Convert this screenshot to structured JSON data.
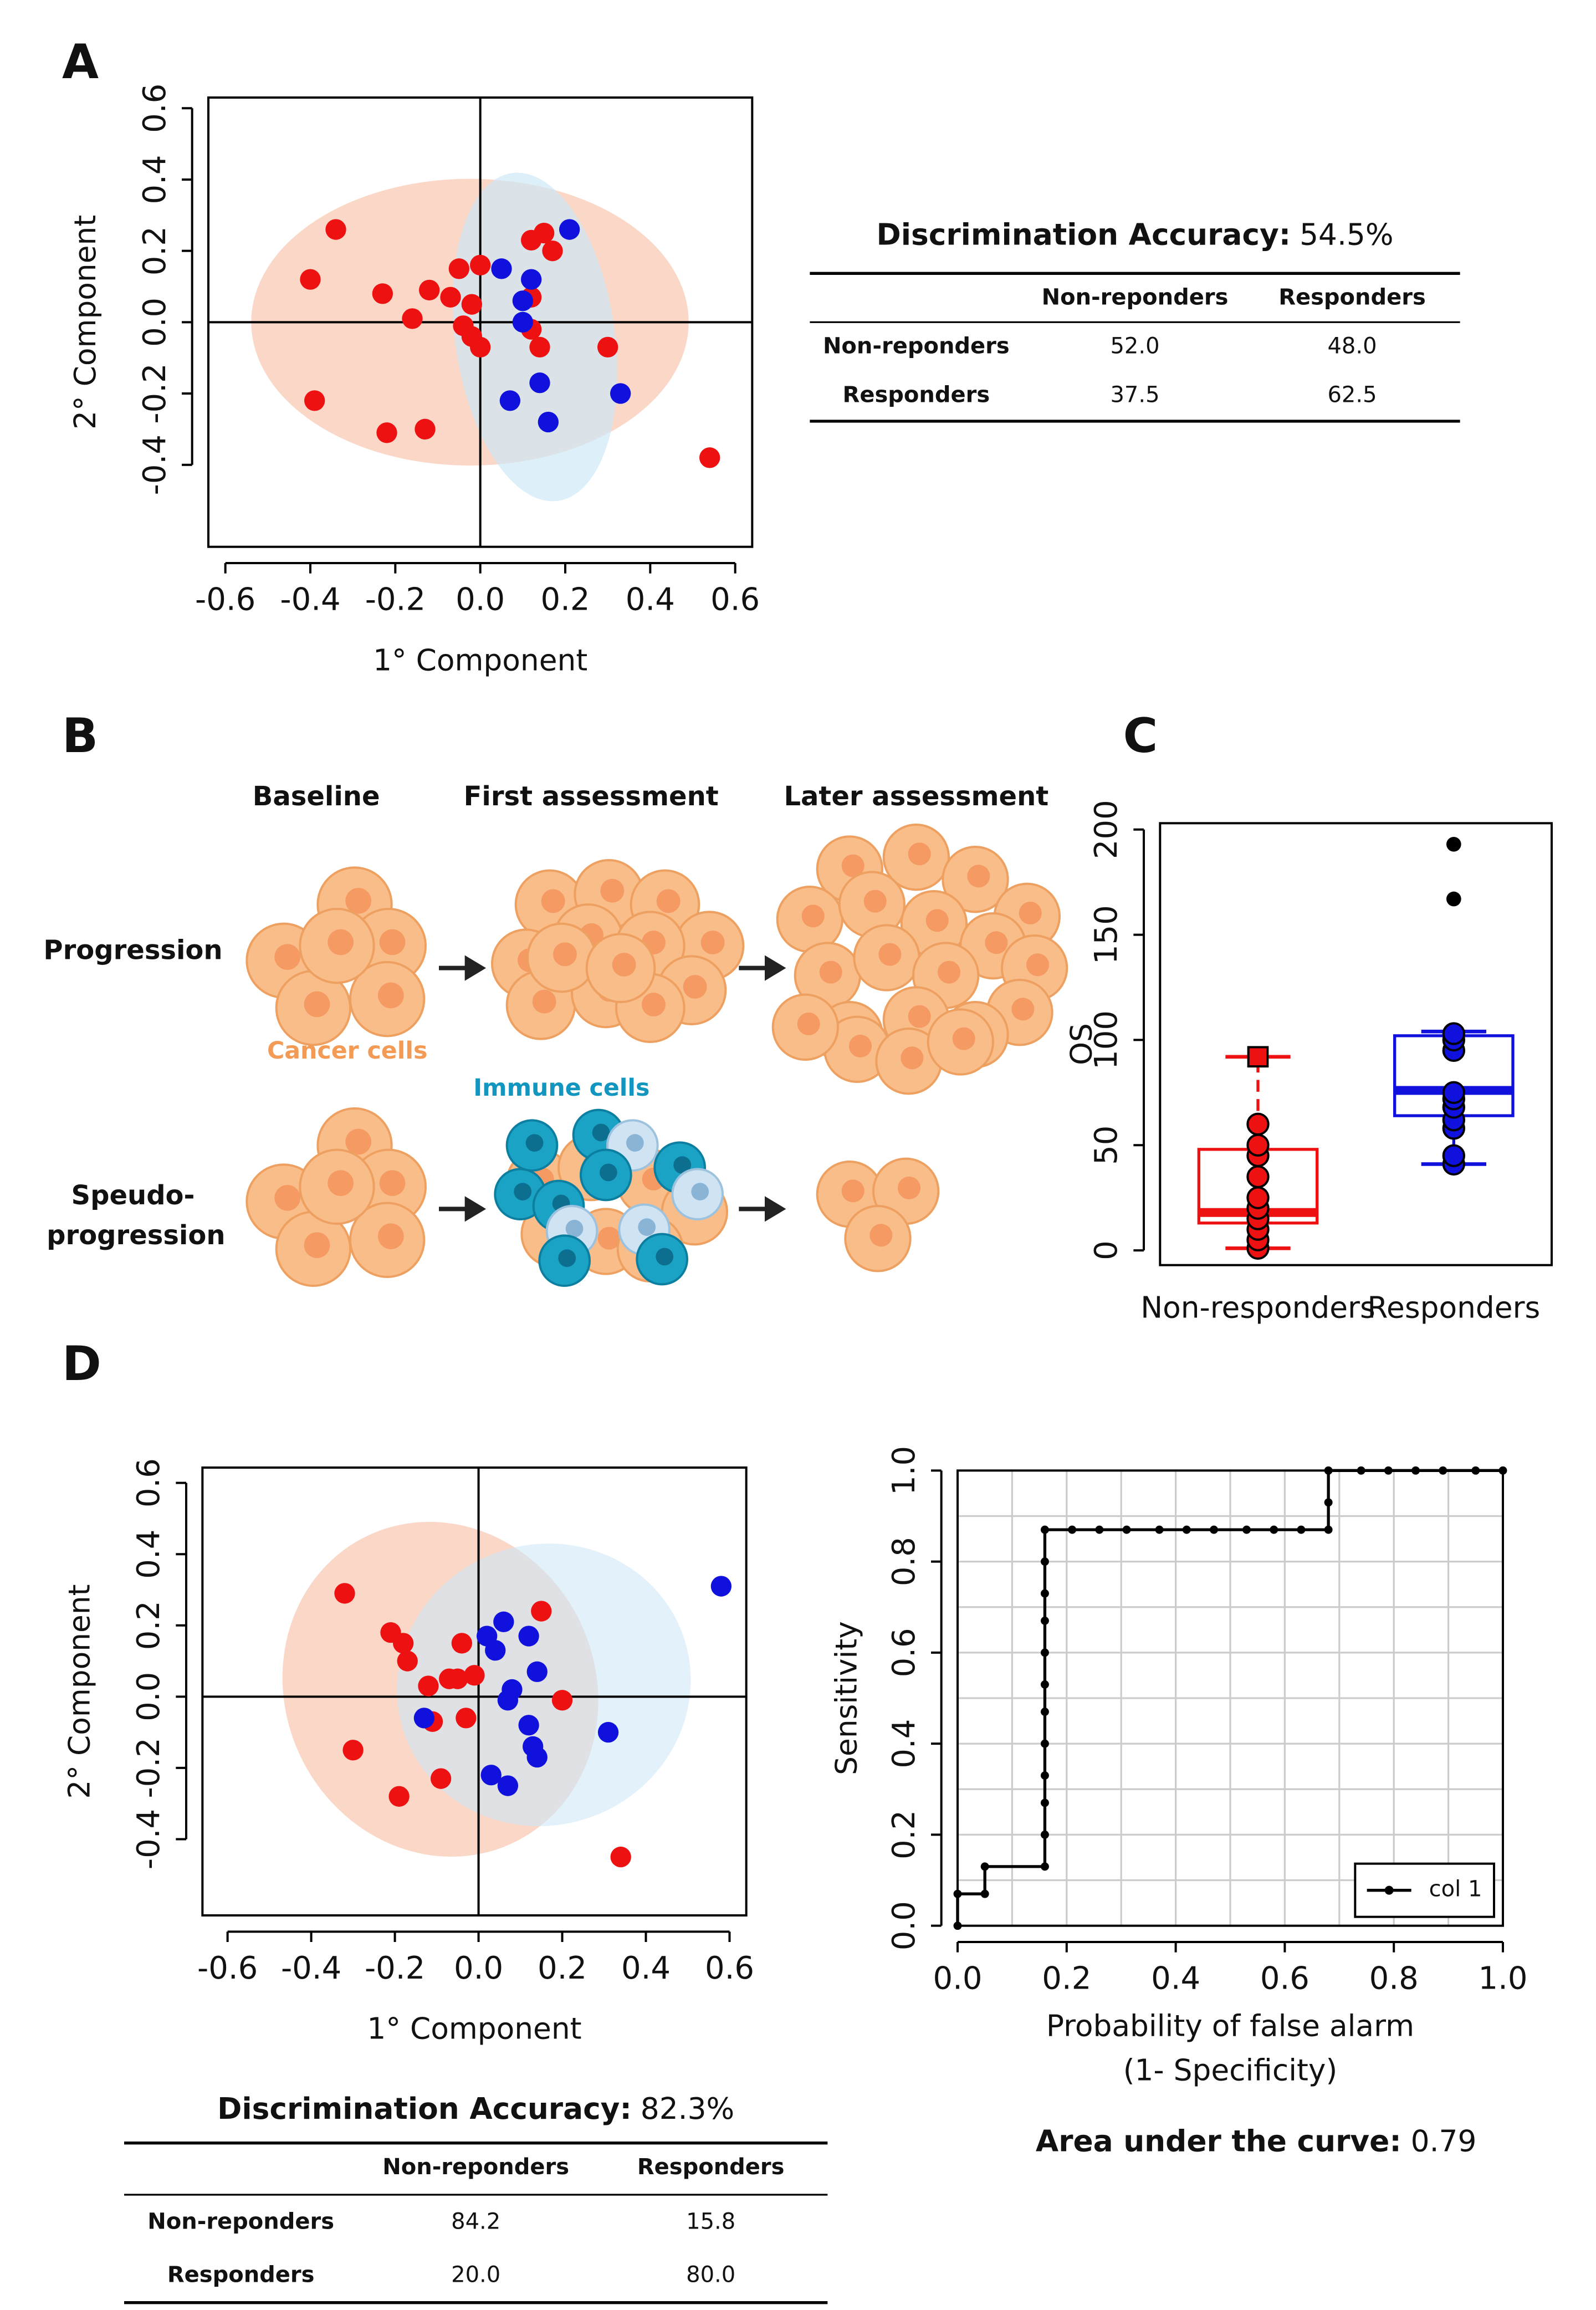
{
  "panel_labels": [
    "A",
    "B",
    "C",
    "D"
  ],
  "chart_data": [
    {
      "type": "scatter",
      "xlabel": "1° Component",
      "ylabel": "2° Component",
      "xlim": [
        -0.64,
        0.64
      ],
      "ylim": [
        -0.63,
        0.63
      ],
      "xticks": [
        -0.6,
        -0.4,
        -0.2,
        {
          "value": 0,
          "label": "0.0"
        },
        0.2,
        0.4,
        0.6
      ],
      "yticks": [
        -0.4,
        -0.2,
        {
          "value": 0,
          "label": "0.0"
        },
        0.2,
        0.4,
        0.6
      ],
      "series": [
        {
          "color": "#ee1111",
          "x": [
            -0.34,
            -0.4,
            -0.39,
            -0.23,
            -0.22,
            -0.13,
            -0.16,
            -0.12,
            -0.05,
            0.0,
            -0.07,
            -0.02,
            -0.04,
            -0.02,
            0.0,
            0.12,
            0.15,
            0.12,
            0.17,
            0.12,
            0.14,
            0.3,
            0.54
          ],
          "y": [
            0.26,
            0.12,
            -0.22,
            0.08,
            -0.31,
            -0.3,
            0.01,
            0.09,
            0.15,
            0.16,
            0.07,
            0.05,
            -0.01,
            -0.04,
            -0.07,
            0.07,
            0.25,
            0.23,
            0.2,
            -0.02,
            -0.07,
            -0.07,
            -0.38
          ]
        },
        {
          "color": "#1111dd",
          "x": [
            0.05,
            0.21,
            0.12,
            0.1,
            0.1,
            0.07,
            0.14,
            0.16,
            0.33
          ],
          "y": [
            0.15,
            0.26,
            0.12,
            0.06,
            0.0,
            -0.22,
            -0.17,
            -0.28,
            -0.2
          ]
        }
      ]
    },
    {
      "type": "box",
      "ylabel": "OS",
      "categories": [
        "Non-responders",
        "Responders"
      ],
      "ylim": [
        -7,
        203
      ],
      "yticks": [
        0,
        50,
        100,
        150,
        200
      ],
      "series": [
        {
          "color": "#ee1111",
          "whisker_low": 1,
          "q1": 13,
          "median": 18,
          "q3": 48,
          "whisker_high": 92,
          "points": [
            1,
            5,
            10,
            15,
            20,
            25,
            35,
            45,
            50,
            60
          ],
          "outliers": [
            92
          ]
        },
        {
          "color": "#1111dd",
          "whisker_low": 41,
          "q1": 64,
          "median": 76,
          "q3": 102,
          "whisker_high": 104,
          "points": [
            41,
            45,
            58,
            62,
            68,
            72,
            75,
            95,
            100,
            103
          ],
          "outliers": [
            167,
            193
          ]
        }
      ]
    },
    {
      "type": "scatter",
      "xlabel": "1° Component",
      "ylabel": "2° Component",
      "xlim": [
        -0.66,
        0.64
      ],
      "ylim": [
        -0.614,
        0.643
      ],
      "xticks": [
        -0.6,
        -0.4,
        -0.2,
        {
          "value": 0,
          "label": "0.0"
        },
        0.2,
        0.4,
        0.6
      ],
      "yticks": [
        -0.4,
        -0.2,
        {
          "value": 0,
          "label": "0.0"
        },
        0.2,
        0.4,
        0.6
      ],
      "series": [
        {
          "color": "#ee1111",
          "x": [
            -0.32,
            -0.21,
            -0.18,
            -0.17,
            -0.12,
            -0.07,
            -0.05,
            -0.01,
            -0.04,
            -0.11,
            -0.03,
            -0.3,
            -0.19,
            -0.09,
            0.15,
            0.2,
            0.34
          ],
          "y": [
            0.29,
            0.18,
            0.15,
            0.1,
            0.03,
            0.05,
            0.05,
            0.06,
            0.15,
            -0.07,
            -0.06,
            -0.15,
            -0.28,
            -0.23,
            0.24,
            -0.01,
            -0.45
          ]
        },
        {
          "color": "#1111dd",
          "x": [
            0.58,
            0.06,
            0.02,
            0.12,
            0.04,
            0.14,
            0.08,
            0.07,
            -0.13,
            0.12,
            0.13,
            0.14,
            0.31,
            0.03,
            0.07
          ],
          "y": [
            0.31,
            0.21,
            0.17,
            0.17,
            0.13,
            0.07,
            0.02,
            -0.01,
            -0.06,
            -0.08,
            -0.14,
            -0.17,
            -0.1,
            -0.22,
            -0.25
          ]
        }
      ]
    },
    {
      "type": "line",
      "ylabel": "Sensitivity",
      "xlabel": [
        "Probability of false alarm",
        "(1- Specificity)"
      ],
      "xlim": [
        0,
        1
      ],
      "ylim": [
        0,
        1
      ],
      "xticks": [
        {
          "value": 0,
          "label": "0.0"
        },
        0.2,
        0.4,
        0.6,
        0.8,
        {
          "value": 1,
          "label": "1.0"
        }
      ],
      "yticks": [
        {
          "value": 0,
          "label": "0.0"
        },
        0.2,
        0.4,
        0.6,
        0.8,
        {
          "value": 1,
          "label": "1.0"
        }
      ],
      "xgrid": [
        0,
        0.1,
        0.2,
        0.3,
        0.4,
        0.5,
        0.6,
        0.7,
        0.8,
        0.9,
        1
      ],
      "ygrid": [
        0,
        0.1,
        0.2,
        0.3,
        0.4,
        0.5,
        0.6,
        0.7,
        0.8,
        0.9,
        1
      ],
      "legend": "bottom right",
      "series": [
        {
          "name": "col 1",
          "color": "#000000",
          "x": [
            0,
            0,
            0.05,
            0.05,
            0.16,
            0.16,
            0.16,
            0.16,
            0.16,
            0.16,
            0.16,
            0.16,
            0.16,
            0.16,
            0.16,
            0.16,
            0.21,
            0.26,
            0.31,
            0.37,
            0.42,
            0.47,
            0.53,
            0.58,
            0.63,
            0.68,
            0.68,
            0.68,
            0.74,
            0.79,
            0.84,
            0.89,
            0.95,
            1.0
          ],
          "values": [
            0,
            0.07,
            0.07,
            0.13,
            0.13,
            0.2,
            0.27,
            0.33,
            0.4,
            0.47,
            0.53,
            0.6,
            0.67,
            0.73,
            0.8,
            0.87,
            0.87,
            0.87,
            0.87,
            0.87,
            0.87,
            0.87,
            0.87,
            0.87,
            0.87,
            0.87,
            0.93,
            1.0,
            1,
            1,
            1,
            1,
            1,
            1
          ]
        }
      ]
    }
  ],
  "tables": [
    {
      "title": "Discrimination Accuracy:",
      "value": "54.5%",
      "columns": [
        "Non-reponders",
        "Responders"
      ],
      "row_labels": [
        "Non-reponders",
        "Responders"
      ],
      "rows": [
        [
          "52.0",
          "48.0"
        ],
        [
          "37.5",
          "62.5"
        ]
      ]
    },
    {
      "title": "Discrimination Accuracy:",
      "value": "82.3%",
      "columns": [
        "Non-reponders",
        "Responders"
      ],
      "row_labels": [
        "Non-reponders",
        "Responders"
      ],
      "rows": [
        [
          "84.2",
          "15.8"
        ],
        [
          "20.0",
          "80.0"
        ]
      ]
    }
  ],
  "diagram": {
    "columns": [
      "Baseline",
      "First assessment",
      "Later assessment"
    ],
    "rows": [
      "Progression",
      [
        "Speudo-",
        "progression"
      ]
    ],
    "cancer_label": "Cancer cells",
    "immune_label": "Immune cells"
  },
  "auc": {
    "label": "Area under the curve:",
    "value": 0.79
  }
}
